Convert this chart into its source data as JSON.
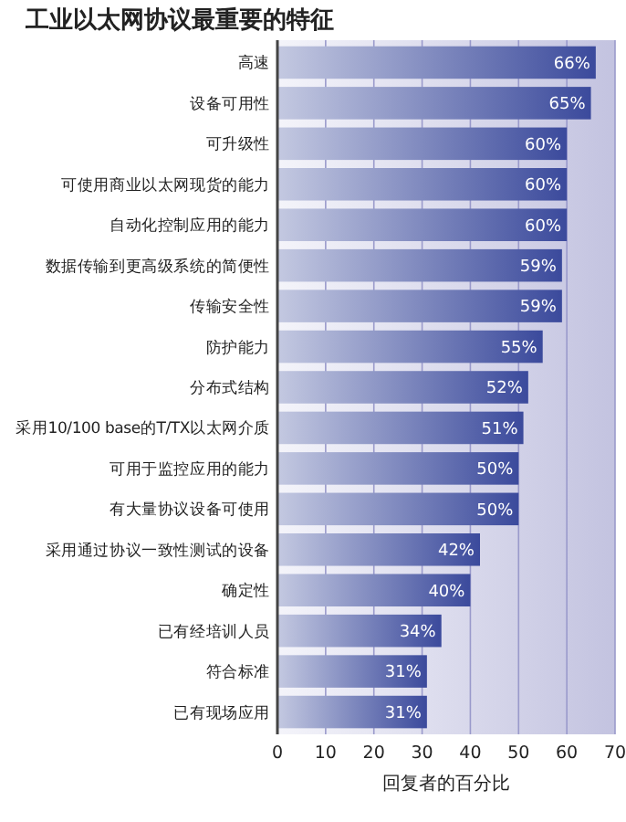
{
  "chart_data": {
    "type": "bar",
    "orientation": "horizontal",
    "title": "工业以太网协议最重要的特征",
    "xlabel": "回复者的百分比",
    "categories": [
      "高速",
      "设备可用性",
      "可升级性",
      "可使用商业以太网现货的能力",
      "自动化控制应用的能力",
      "数据传输到更高级系统的简便性",
      "传输安全性",
      "防护能力",
      "分布式结构",
      "采用10/100 base的T/TX以太网介质",
      "可用于监控应用的能力",
      "有大量协议设备可使用",
      "采用通过协议一致性测试的设备",
      "确定性",
      "已有经培训人员",
      "符合标准",
      "已有现场应用"
    ],
    "values": [
      66,
      65,
      60,
      60,
      60,
      59,
      59,
      55,
      52,
      51,
      50,
      50,
      42,
      40,
      34,
      31,
      31
    ],
    "value_labels": [
      "66%",
      "65%",
      "60%",
      "60%",
      "60%",
      "59%",
      "59%",
      "55%",
      "52%",
      "51%",
      "50%",
      "50%",
      "42%",
      "40%",
      "34%",
      "31%",
      "31%"
    ],
    "color": "#3b4a9c",
    "xlim": [
      0,
      70
    ],
    "xticks": [
      0,
      10,
      20,
      30,
      40,
      50,
      60,
      70
    ],
    "grid": "x"
  }
}
